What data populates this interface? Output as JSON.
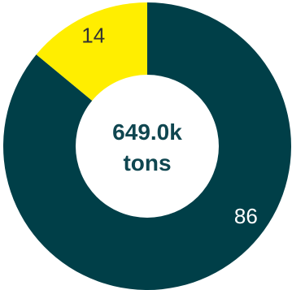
{
  "chart_data": {
    "type": "pie",
    "variant": "donut",
    "slices": [
      {
        "label": "86",
        "value": 86,
        "color": "#003f48"
      },
      {
        "label": "14",
        "value": 14,
        "color": "#ffee00"
      }
    ],
    "center": {
      "value": "649.0k",
      "unit": "tons"
    },
    "colors": {
      "label_on_dark": "#ffffff",
      "label_on_light": "#333333",
      "center_text": "#0f4650",
      "hole": "#ffffff"
    }
  }
}
